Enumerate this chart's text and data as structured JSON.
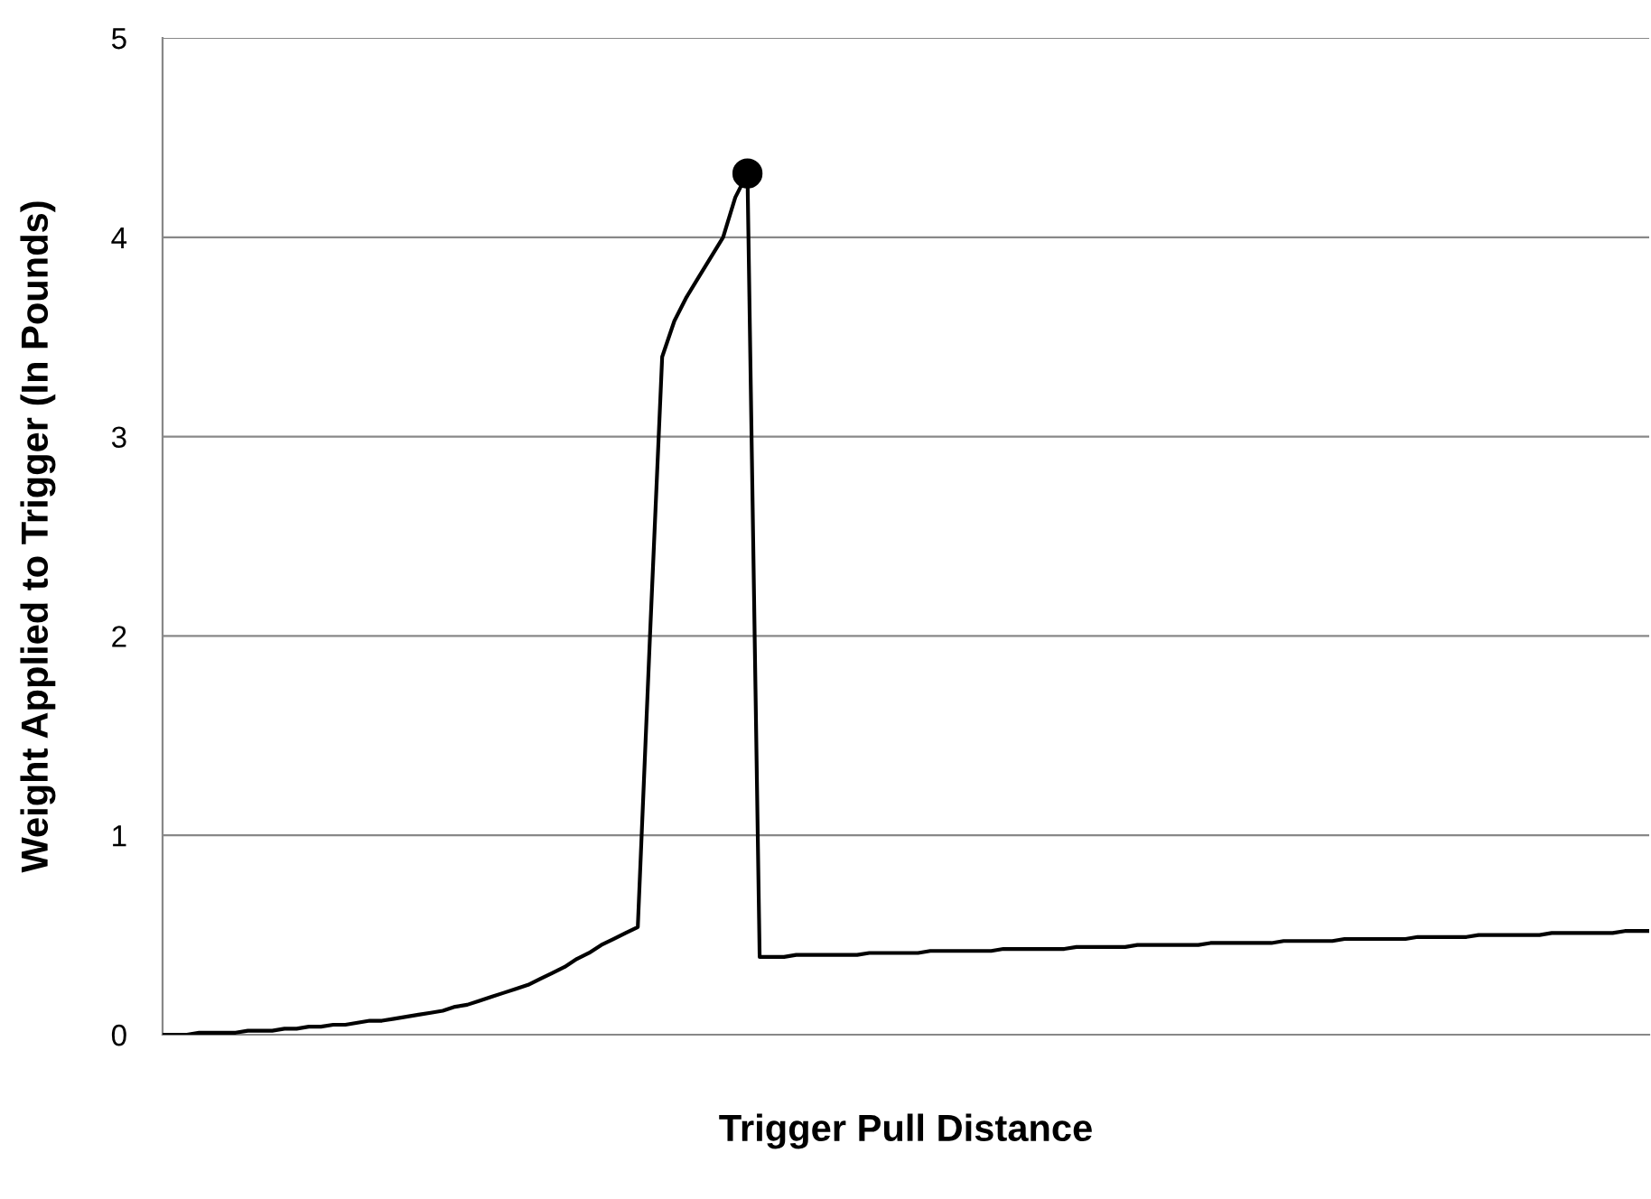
{
  "chart_data": {
    "type": "line",
    "xlabel": "Trigger Pull Distance",
    "ylabel": "Weight Applied to Trigger (In Pounds)",
    "categories": [
      null,
      null,
      null,
      null,
      null,
      null,
      null,
      null,
      null,
      null,
      null,
      null,
      null,
      null,
      null,
      null,
      null,
      null,
      null,
      null,
      null,
      null,
      null,
      null,
      null,
      null,
      null,
      null,
      null,
      null,
      null,
      null,
      null,
      null,
      null,
      null,
      null,
      null,
      null,
      null,
      null,
      null,
      null,
      null,
      null,
      null,
      null,
      null,
      null,
      null,
      null,
      null,
      null,
      null,
      null,
      null,
      null,
      null,
      null,
      null,
      null,
      null,
      null,
      null,
      null,
      null,
      null,
      null,
      null,
      null,
      null,
      null,
      null,
      null,
      null,
      null,
      null,
      null,
      null,
      null,
      null,
      null,
      null,
      null,
      null,
      null,
      null,
      null,
      null,
      null,
      null,
      null,
      null,
      null,
      null,
      null,
      null,
      null,
      null,
      null,
      null,
      null,
      null,
      null,
      null,
      null,
      null,
      null,
      null,
      null,
      null,
      null,
      null,
      null,
      null,
      null,
      null,
      null,
      null,
      null,
      null,
      null,
      null
    ],
    "series": [
      {
        "color": "#000000",
        "marker": "none",
        "values": [
          0,
          0,
          0,
          0.01,
          0.01,
          0.01,
          0.01,
          0.02,
          0.02,
          0.02,
          0.03,
          0.03,
          0.04,
          0.04,
          0.05,
          0.05,
          0.06,
          0.07,
          0.07,
          0.08,
          0.09,
          0.1,
          0.11,
          0.12,
          0.14,
          0.15,
          0.17,
          0.19,
          0.21,
          0.23,
          0.25,
          0.28,
          0.31,
          0.34,
          0.38,
          0.41,
          0.45,
          0.48,
          0.51,
          0.54,
          2.0,
          3.4,
          3.58,
          3.7,
          3.8,
          3.9,
          4.0,
          4.2,
          4.32,
          0.39,
          0.39,
          0.39,
          0.4,
          0.4,
          0.4,
          0.4,
          0.4,
          0.4,
          0.41,
          0.41,
          0.41,
          0.41,
          0.41,
          0.42,
          0.42,
          0.42,
          0.42,
          0.42,
          0.42,
          0.43,
          0.43,
          0.43,
          0.43,
          0.43,
          0.43,
          0.44,
          0.44,
          0.44,
          0.44,
          0.44,
          0.45,
          0.45,
          0.45,
          0.45,
          0.45,
          0.45,
          0.46,
          0.46,
          0.46,
          0.46,
          0.46,
          0.46,
          0.47,
          0.47,
          0.47,
          0.47,
          0.47,
          0.48,
          0.48,
          0.48,
          0.48,
          0.48,
          0.48,
          0.49,
          0.49,
          0.49,
          0.49,
          0.49,
          0.5,
          0.5,
          0.5,
          0.5,
          0.5,
          0.5,
          0.51,
          0.51,
          0.51,
          0.51,
          0.51,
          0.51,
          0.52,
          0.52,
          0.52
        ]
      },
      {
        "color": "#000000",
        "marker": "circle",
        "values": [
          null,
          null,
          null,
          null,
          null,
          null,
          null,
          null,
          null,
          null,
          null,
          null,
          null,
          null,
          null,
          null,
          null,
          null,
          null,
          null,
          null,
          null,
          null,
          null,
          null,
          null,
          null,
          null,
          null,
          null,
          null,
          null,
          null,
          null,
          null,
          null,
          null,
          null,
          null,
          null,
          null,
          null,
          null,
          null,
          null,
          null,
          null,
          null,
          4.32,
          null,
          null,
          null,
          null,
          null,
          null,
          null,
          null,
          null,
          null,
          null,
          null,
          null,
          null,
          null,
          null,
          null,
          null,
          null,
          null,
          null,
          null,
          null,
          null,
          null,
          null,
          null,
          null,
          null,
          null,
          null,
          null,
          null,
          null,
          null,
          null,
          null,
          null,
          null,
          null,
          null,
          null,
          null,
          null,
          null,
          null,
          null,
          null,
          null,
          null,
          null,
          null,
          null,
          null,
          null,
          null,
          null,
          null,
          null,
          null,
          null,
          null,
          null,
          null,
          null,
          null,
          null,
          null,
          null,
          null,
          null,
          null,
          null,
          null
        ]
      }
    ],
    "ylim": [
      0,
      5
    ],
    "yticks": [
      0,
      1,
      2,
      3,
      4,
      5
    ],
    "grid": "y",
    "legend": false
  }
}
